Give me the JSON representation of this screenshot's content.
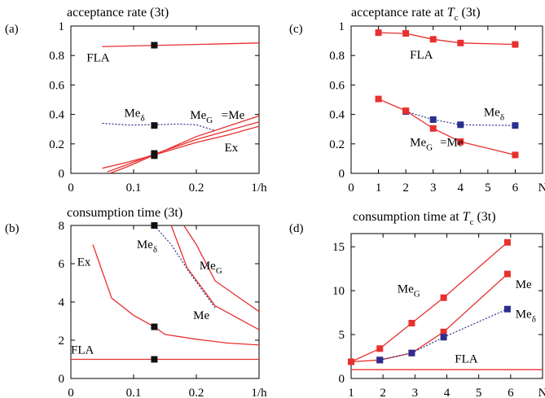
{
  "colors": {
    "red": "#e8302f",
    "blue": "#2a2f8e",
    "black": "#111111",
    "frame": "#000000"
  },
  "chart_data": [
    {
      "id": "a",
      "type": "line",
      "panel_label": "(a)",
      "title": "acceptance rate (3t)",
      "xlabel": "1/h",
      "ylabel": "",
      "xlim": [
        0,
        0.3
      ],
      "ylim": [
        0,
        1
      ],
      "x_ticks": [
        0,
        0.1,
        0.2,
        0.3
      ],
      "x_tick_labels": [
        "0",
        "0.1",
        "0.2",
        "1/h"
      ],
      "y_ticks": [
        0,
        0.2,
        0.4,
        0.6,
        0.8,
        1
      ],
      "y_tick_labels": [
        "0",
        "0.2",
        "0.4",
        "0.6",
        "0.8",
        "1"
      ],
      "series": [
        {
          "name": "FLA",
          "color": "red",
          "dash": false,
          "marker": "none",
          "x": [
            0.05,
            0.1,
            0.15,
            0.2,
            0.3
          ],
          "y": [
            0.86,
            0.865,
            0.87,
            0.875,
            0.885
          ]
        },
        {
          "name": "Meδ",
          "color": "blue",
          "dash": true,
          "marker": "none",
          "x": [
            0.05,
            0.09,
            0.133,
            0.17,
            0.2,
            0.23
          ],
          "y": [
            0.34,
            0.328,
            0.33,
            0.335,
            0.33,
            0.29
          ]
        },
        {
          "name": "MeG",
          "color": "red",
          "dash": false,
          "marker": "none",
          "x": [
            0.05,
            0.09,
            0.133,
            0.2,
            0.25,
            0.3
          ],
          "y": [
            0.035,
            0.075,
            0.125,
            0.25,
            0.32,
            0.39
          ]
        },
        {
          "name": "Me",
          "color": "red",
          "dash": false,
          "marker": "none",
          "x": [
            0.058,
            0.09,
            0.133,
            0.2,
            0.25,
            0.3
          ],
          "y": [
            0.01,
            0.06,
            0.13,
            0.23,
            0.29,
            0.35
          ]
        },
        {
          "name": "Ex",
          "color": "red",
          "dash": false,
          "marker": "none",
          "x": [
            0.062,
            0.09,
            0.133,
            0.2,
            0.25,
            0.3
          ],
          "y": [
            0.0,
            0.045,
            0.125,
            0.21,
            0.26,
            0.32
          ]
        }
      ],
      "points": [
        {
          "x": 0.133,
          "y": 0.87,
          "color": "black"
        },
        {
          "x": 0.133,
          "y": 0.325,
          "color": "black"
        },
        {
          "x": 0.133,
          "y": 0.135,
          "color": "black"
        },
        {
          "x": 0.133,
          "y": 0.12,
          "color": "black"
        }
      ],
      "annotations": [
        {
          "text": "FLA",
          "sub": "",
          "x": 0.025,
          "y": 0.76
        },
        {
          "text": "Me",
          "sub": "δ",
          "x": 0.085,
          "y": 0.385
        },
        {
          "text": "Me",
          "sub": "G",
          "x": 0.19,
          "y": 0.37
        },
        {
          "text": "=Me",
          "sub": "",
          "x": 0.24,
          "y": 0.37
        },
        {
          "text": "Ex",
          "sub": "",
          "x": 0.245,
          "y": 0.15
        }
      ]
    },
    {
      "id": "b",
      "type": "line",
      "panel_label": "(b)",
      "title": "consumption time (3t)",
      "xlabel": "1/h",
      "ylabel": "",
      "xlim": [
        0,
        0.3
      ],
      "ylim": [
        0,
        8
      ],
      "x_ticks": [
        0,
        0.1,
        0.2,
        0.3
      ],
      "x_tick_labels": [
        "0",
        "0.1",
        "0.2",
        "1/h"
      ],
      "y_ticks": [
        0,
        2,
        4,
        6,
        8
      ],
      "y_tick_labels": [
        "0",
        "2",
        "4",
        "6",
        "8"
      ],
      "series": [
        {
          "name": "FLA",
          "color": "red",
          "dash": false,
          "marker": "none",
          "x": [
            0,
            0.3
          ],
          "y": [
            1.0,
            1.0
          ]
        },
        {
          "name": "Ex",
          "color": "red",
          "dash": false,
          "marker": "none",
          "x": [
            0.035,
            0.065,
            0.1,
            0.133,
            0.15,
            0.2,
            0.25,
            0.3
          ],
          "y": [
            7.0,
            4.2,
            3.3,
            2.7,
            2.3,
            2.05,
            1.85,
            1.75
          ]
        },
        {
          "name": "Meδ",
          "color": "blue",
          "dash": true,
          "marker": "none",
          "x": [
            0.133,
            0.16,
            0.19,
            0.23
          ],
          "y": [
            8.0,
            7.0,
            5.5,
            3.7
          ]
        },
        {
          "name": "Me",
          "color": "red",
          "dash": false,
          "marker": "none",
          "x": [
            0.16,
            0.185,
            0.23,
            0.3
          ],
          "y": [
            8.0,
            5.8,
            3.8,
            2.55
          ]
        },
        {
          "name": "MeG",
          "color": "red",
          "dash": false,
          "marker": "none",
          "x": [
            0.18,
            0.2,
            0.23,
            0.3
          ],
          "y": [
            8.0,
            7.0,
            5.1,
            3.5
          ]
        }
      ],
      "points": [
        {
          "x": 0.133,
          "y": 8.0,
          "color": "black"
        },
        {
          "x": 0.133,
          "y": 2.7,
          "color": "black"
        },
        {
          "x": 0.133,
          "y": 1.0,
          "color": "black"
        }
      ],
      "annotations": [
        {
          "text": "Ex",
          "sub": "",
          "x": 0.01,
          "y": 5.9
        },
        {
          "text": "Me",
          "sub": "δ",
          "x": 0.105,
          "y": 6.8
        },
        {
          "text": "Me",
          "sub": "G",
          "x": 0.205,
          "y": 5.7
        },
        {
          "text": "Me",
          "sub": "",
          "x": 0.195,
          "y": 3.1
        },
        {
          "text": "FLA",
          "sub": "",
          "x": 0.0,
          "y": 1.3
        }
      ]
    },
    {
      "id": "c",
      "type": "line",
      "panel_label": "(c)",
      "title": "acceptance rate at",
      "title_sym": "T",
      "title_sub": "c",
      "title_tail": " (3t)",
      "xlabel": "N",
      "ylabel": "",
      "xlim": [
        0,
        7
      ],
      "ylim": [
        0,
        1
      ],
      "x_ticks": [
        0,
        1,
        2,
        3,
        4,
        5,
        6,
        7
      ],
      "x_tick_labels": [
        "0",
        "1",
        "2",
        "3",
        "4",
        "5",
        "6",
        "N"
      ],
      "y_ticks": [
        0,
        0.2,
        0.4,
        0.6,
        0.8,
        1
      ],
      "y_tick_labels": [
        "0",
        "0.2",
        "0.4",
        "0.6",
        "0.8",
        "1"
      ],
      "series": [
        {
          "name": "FLA",
          "color": "red",
          "dash": false,
          "marker": "red",
          "x": [
            1,
            2,
            3,
            4,
            6
          ],
          "y": [
            0.955,
            0.95,
            0.91,
            0.885,
            0.875
          ]
        },
        {
          "name": "Meδ",
          "color": "blue",
          "dash": true,
          "marker": "blue",
          "x": [
            2,
            3,
            4,
            6
          ],
          "y": [
            0.42,
            0.365,
            0.33,
            0.325
          ]
        },
        {
          "name": "MeG=Me",
          "color": "red",
          "dash": false,
          "marker": "red",
          "x": [
            1,
            2,
            3,
            4,
            6
          ],
          "y": [
            0.505,
            0.425,
            0.305,
            0.215,
            0.125
          ]
        }
      ],
      "points": [],
      "annotations": [
        {
          "text": "FLA",
          "sub": "",
          "x": 2.15,
          "y": 0.78
        },
        {
          "text": "Me",
          "sub": "δ",
          "x": 4.85,
          "y": 0.39
        },
        {
          "text": "Me",
          "sub": "G",
          "x": 2.15,
          "y": 0.185
        },
        {
          "text": "=Me",
          "sub": "",
          "x": 3.25,
          "y": 0.185
        }
      ]
    },
    {
      "id": "d",
      "type": "line",
      "panel_label": "(d)",
      "title": "consumption time at",
      "title_sym": "T",
      "title_sub": "c",
      "title_tail": " (3t)",
      "xlabel": "N",
      "ylabel": "",
      "xlim": [
        1,
        7
      ],
      "ylim": [
        0,
        16.5
      ],
      "x_ticks": [
        1,
        2,
        3,
        4,
        5,
        6,
        7
      ],
      "x_tick_labels": [
        "1",
        "2",
        "3",
        "4",
        "5",
        "6",
        "N"
      ],
      "y_ticks": [
        0,
        5,
        10,
        15
      ],
      "y_tick_labels": [
        "0",
        "5",
        "10",
        "15"
      ],
      "series": [
        {
          "name": "FLA",
          "color": "red",
          "dash": false,
          "marker": "none",
          "x": [
            1,
            7
          ],
          "y": [
            1.0,
            1.0
          ]
        },
        {
          "name": "MeG",
          "color": "red",
          "dash": false,
          "marker": "red",
          "x": [
            1,
            1.9,
            2.9,
            3.9,
            5.9
          ],
          "y": [
            1.9,
            3.4,
            6.3,
            9.2,
            15.5
          ]
        },
        {
          "name": "Me",
          "color": "red",
          "dash": false,
          "marker": "red",
          "x": [
            1,
            1.9,
            2.9,
            3.9,
            5.9
          ],
          "y": [
            1.9,
            2.1,
            2.9,
            5.3,
            11.9
          ]
        },
        {
          "name": "Meδ",
          "color": "blue",
          "dash": true,
          "marker": "blue",
          "x": [
            1.9,
            2.9,
            3.9,
            5.9
          ],
          "y": [
            2.1,
            2.9,
            4.7,
            7.9
          ]
        }
      ],
      "points": [],
      "annotations": [
        {
          "text": "Me",
          "sub": "G",
          "x": 2.45,
          "y": 9.8
        },
        {
          "text": "Me",
          "sub": "",
          "x": 6.15,
          "y": 10.3
        },
        {
          "text": "Me",
          "sub": "δ",
          "x": 6.15,
          "y": 6.9
        },
        {
          "text": "FLA",
          "sub": "",
          "x": 4.25,
          "y": 1.8
        }
      ]
    }
  ]
}
